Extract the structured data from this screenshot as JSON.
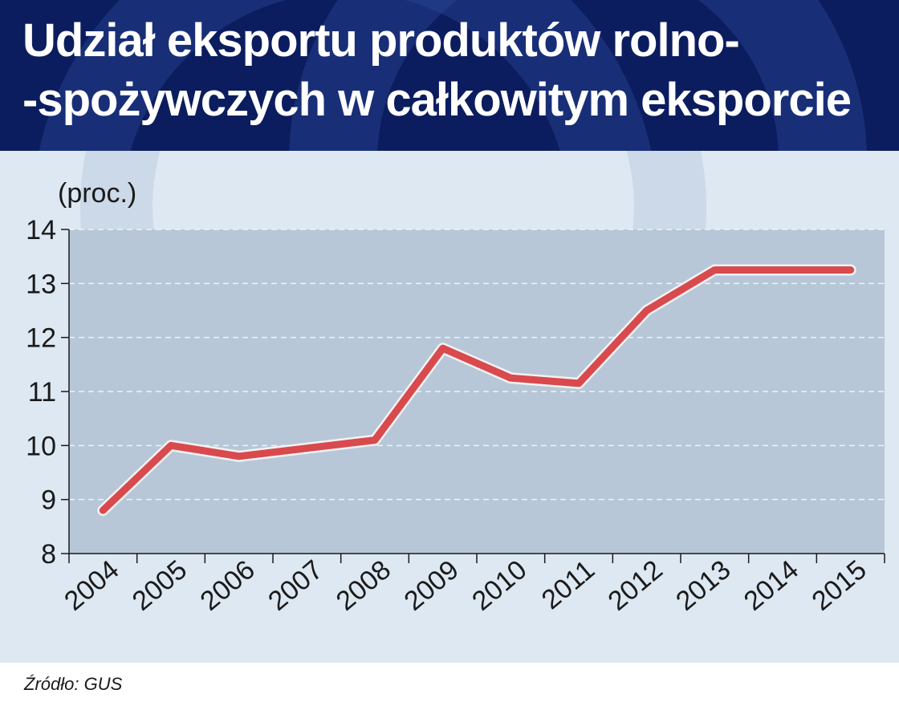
{
  "header": {
    "title_line1": "Udział eksportu produktów rolno-",
    "title_line2": "-spożywczych w całkowitym eksporcie"
  },
  "unit_label": "(proc.)",
  "source": "Źródło: GUS",
  "colors": {
    "header_bg": "#0b1d5e",
    "chart_bg": "#dde8f2",
    "plot_bg": "#b7c7d8",
    "line": "#d84a4d",
    "line_outline": "#f2f2f2"
  },
  "chart_data": {
    "type": "line",
    "categories": [
      "2004",
      "2005",
      "2006",
      "2007",
      "2008",
      "2009",
      "2010",
      "2011",
      "2012",
      "2013",
      "2014",
      "2015"
    ],
    "series": [
      {
        "values": [
          8.8,
          10.0,
          9.8,
          9.95,
          10.1,
          11.8,
          11.25,
          11.15,
          12.5,
          13.25,
          13.25,
          13.25
        ]
      }
    ],
    "ylim": [
      8,
      14
    ],
    "yticks": [
      8,
      9,
      10,
      11,
      12,
      13,
      14
    ],
    "grid": true
  }
}
